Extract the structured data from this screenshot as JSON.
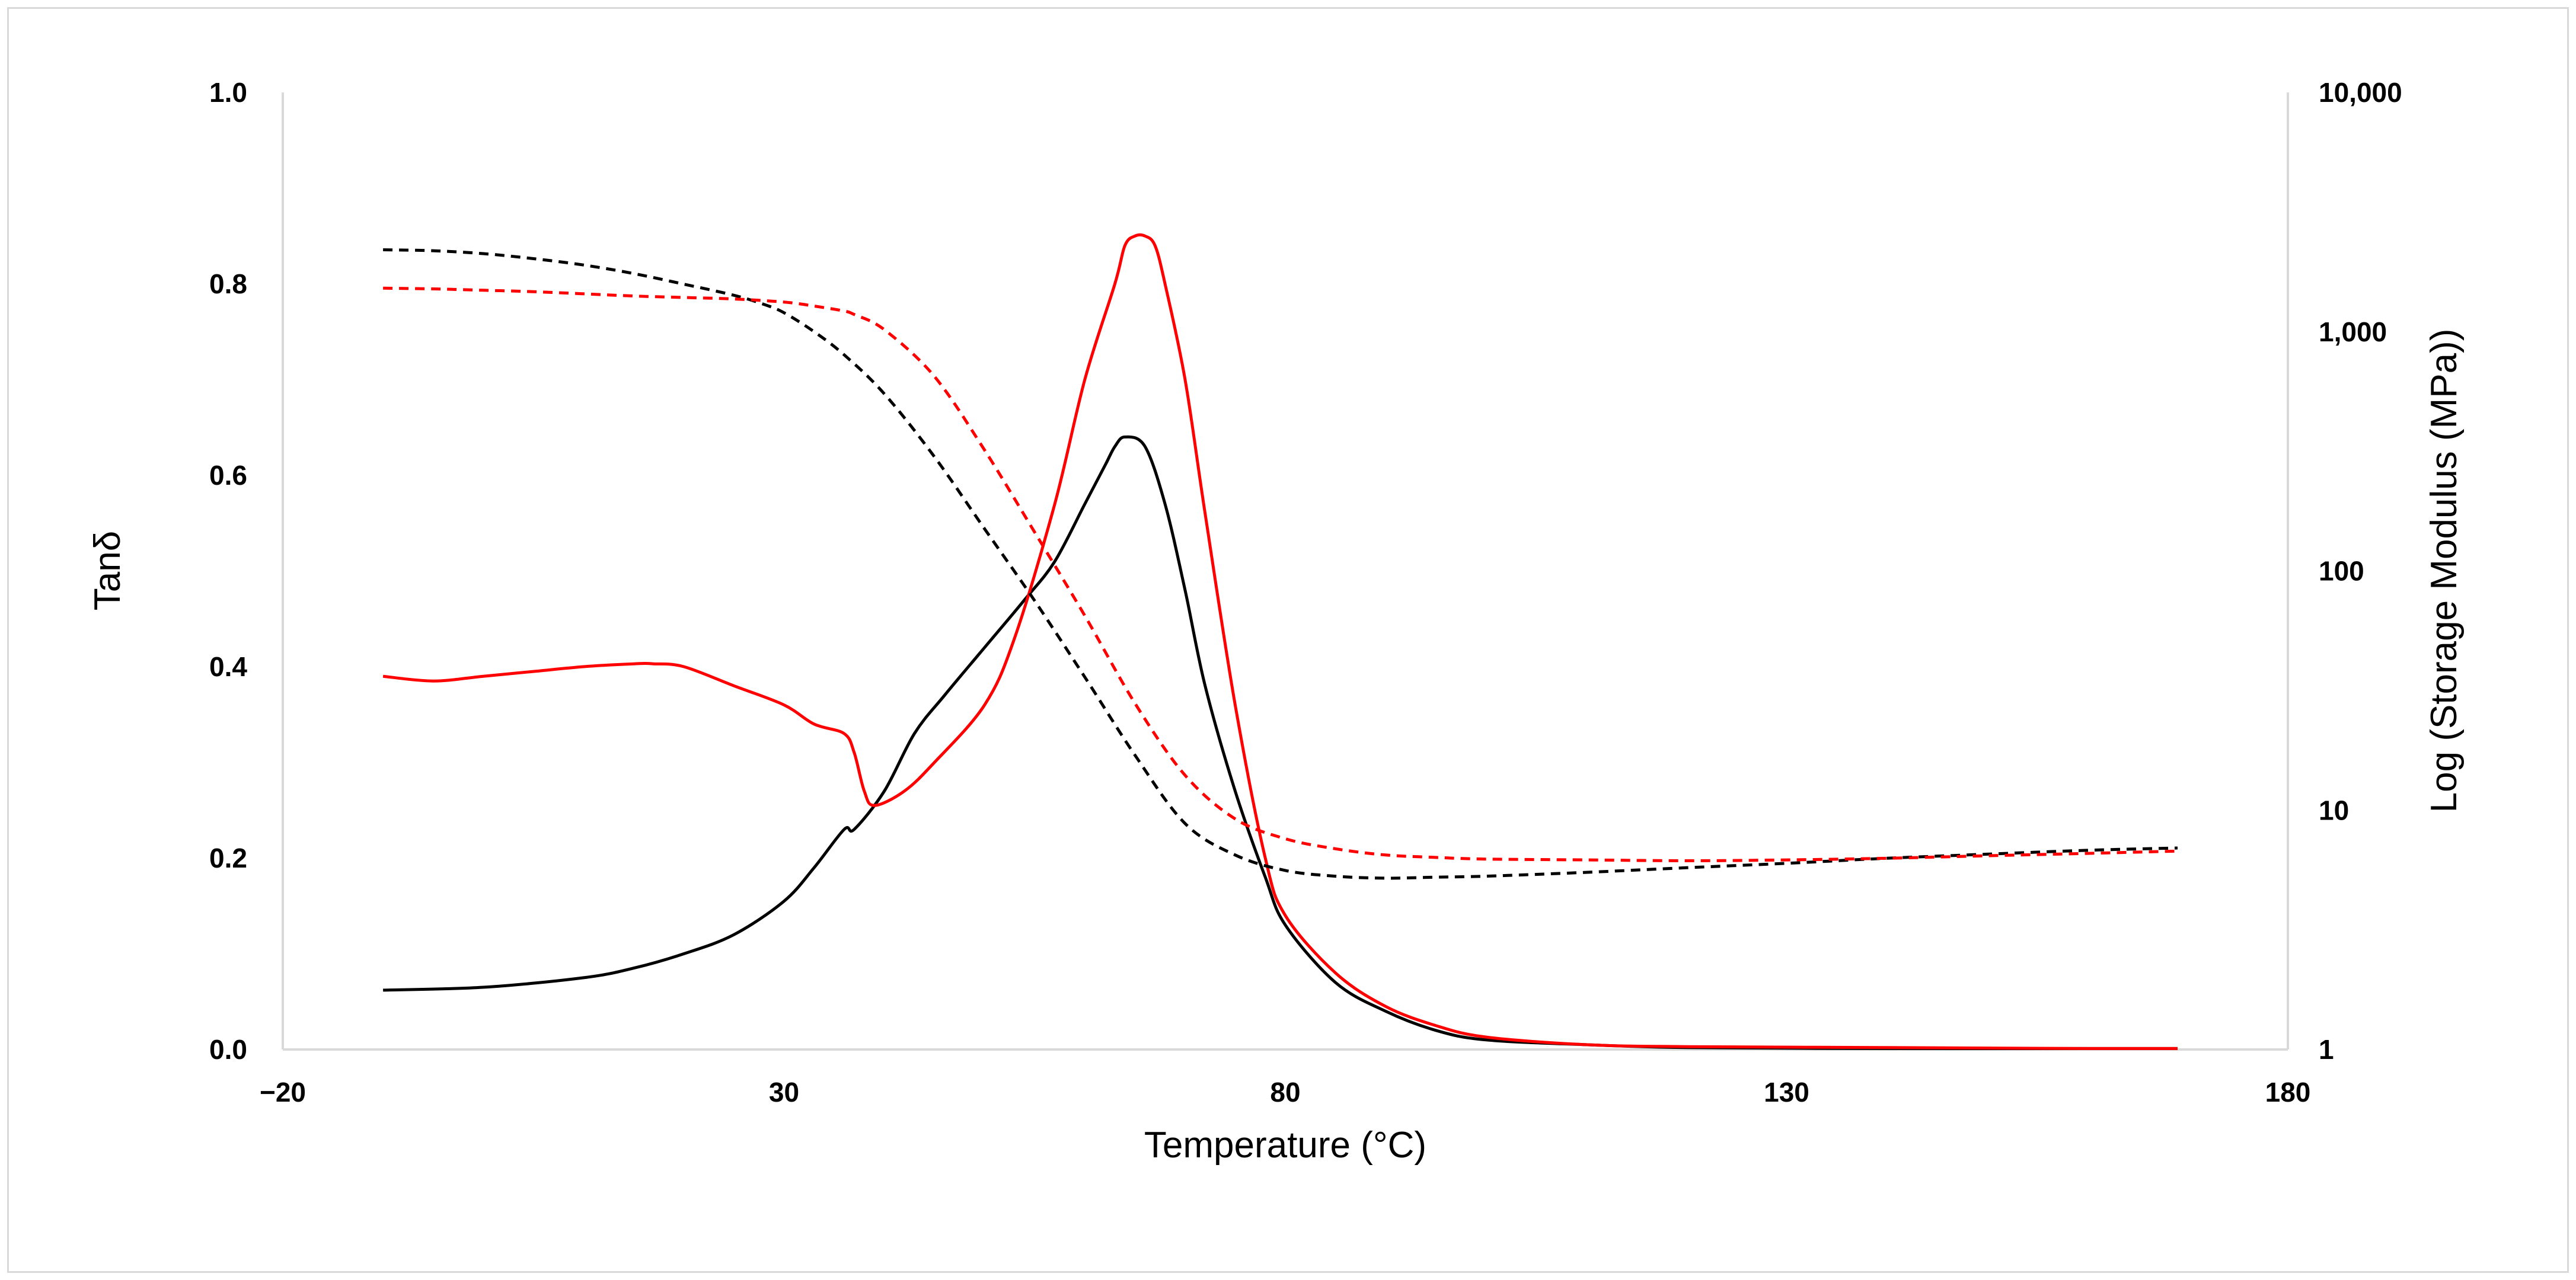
{
  "chart_data": {
    "type": "line",
    "title": "",
    "xlabel": "Temperature (°C)",
    "ylabel_left": "Tanδ",
    "ylabel_right": "Log (Storage Modulus (MPa))",
    "xlim": [
      -20,
      180
    ],
    "ylim_left": [
      0,
      1
    ],
    "ylim_right_log": [
      1,
      10000
    ],
    "grid": false,
    "legend": "none",
    "x_ticks": [
      {
        "value": -20,
        "label": "−20"
      },
      {
        "value": 30,
        "label": "30"
      },
      {
        "value": 80,
        "label": "80"
      },
      {
        "value": 130,
        "label": "130"
      },
      {
        "value": 180,
        "label": "180"
      }
    ],
    "y_left_ticks": [
      {
        "value": 0,
        "label": "0.0"
      },
      {
        "value": 0.2,
        "label": "0.2"
      },
      {
        "value": 0.4,
        "label": "0.4"
      },
      {
        "value": 0.6,
        "label": "0.6"
      },
      {
        "value": 0.8,
        "label": "0.8"
      },
      {
        "value": 1.0,
        "label": "1.0"
      }
    ],
    "y_right_ticks": [
      {
        "value": 1,
        "label": "1"
      },
      {
        "value": 10,
        "label": "10"
      },
      {
        "value": 100,
        "label": "100"
      },
      {
        "value": 1000,
        "label": "1,000"
      },
      {
        "value": 10000,
        "label": "10,000"
      }
    ],
    "series": [
      {
        "name": "black-tan-delta",
        "axis": "left",
        "color": "#000000",
        "dash": "solid",
        "x": [
          -10,
          0,
          10,
          15,
          20,
          25,
          30,
          33,
          36,
          37,
          40,
          43,
          46,
          50,
          54,
          57,
          60,
          62,
          63,
          64,
          66,
          68,
          70,
          72,
          75,
          78,
          80,
          85,
          90,
          95,
          100,
          110,
          120,
          140,
          160,
          169
        ],
        "y": [
          0.062,
          0.065,
          0.075,
          0.085,
          0.1,
          0.12,
          0.155,
          0.19,
          0.23,
          0.23,
          0.27,
          0.33,
          0.37,
          0.42,
          0.47,
          0.51,
          0.57,
          0.61,
          0.63,
          0.64,
          0.63,
          0.57,
          0.48,
          0.38,
          0.27,
          0.18,
          0.13,
          0.07,
          0.04,
          0.02,
          0.01,
          0.005,
          0.002,
          0.001,
          0.001,
          0.001
        ]
      },
      {
        "name": "red-tan-delta",
        "axis": "left",
        "color": "#ff0000",
        "dash": "solid",
        "x": [
          -10,
          -5,
          0,
          5,
          10,
          15,
          17,
          20,
          25,
          30,
          33,
          36,
          37,
          38,
          39,
          42,
          45,
          50,
          53,
          57,
          60,
          63,
          64,
          65,
          66,
          67,
          68,
          70,
          72,
          75,
          78,
          80,
          85,
          90,
          95,
          100,
          110,
          120,
          140,
          160,
          169
        ],
        "y": [
          0.39,
          0.385,
          0.39,
          0.395,
          0.4,
          0.403,
          0.403,
          0.4,
          0.38,
          0.36,
          0.34,
          0.33,
          0.31,
          0.27,
          0.255,
          0.27,
          0.3,
          0.36,
          0.43,
          0.57,
          0.7,
          0.8,
          0.84,
          0.85,
          0.85,
          0.84,
          0.8,
          0.7,
          0.56,
          0.36,
          0.2,
          0.14,
          0.08,
          0.045,
          0.025,
          0.013,
          0.005,
          0.003,
          0.002,
          0.001,
          0.001
        ]
      },
      {
        "name": "black-storage-modulus",
        "axis": "right",
        "color": "#000000",
        "dash": "dashed",
        "x": [
          -10,
          -5,
          0,
          5,
          10,
          15,
          20,
          25,
          28,
          30,
          33,
          36,
          40,
          45,
          50,
          55,
          60,
          65,
          70,
          75,
          80,
          85,
          90,
          95,
          100,
          110,
          120,
          130,
          140,
          150,
          160,
          169
        ],
        "y": [
          2200,
          2180,
          2120,
          2020,
          1900,
          1750,
          1580,
          1420,
          1300,
          1200,
          1000,
          800,
          550,
          300,
          150,
          75,
          36,
          17,
          8.8,
          6.5,
          5.6,
          5.3,
          5.2,
          5.25,
          5.3,
          5.5,
          5.75,
          6.0,
          6.3,
          6.55,
          6.8,
          6.95
        ]
      },
      {
        "name": "red-storage-modulus",
        "axis": "right",
        "color": "#ff0000",
        "dash": "dashed",
        "x": [
          -10,
          -5,
          0,
          5,
          10,
          15,
          20,
          25,
          30,
          33,
          36,
          37,
          40,
          45,
          50,
          55,
          60,
          65,
          70,
          75,
          80,
          85,
          90,
          95,
          100,
          110,
          120,
          130,
          140,
          150,
          160,
          169
        ],
        "y": [
          1520,
          1510,
          1490,
          1470,
          1440,
          1410,
          1390,
          1370,
          1330,
          1280,
          1220,
          1180,
          1020,
          650,
          320,
          145,
          65,
          28,
          14,
          9.2,
          7.6,
          6.9,
          6.5,
          6.35,
          6.25,
          6.2,
          6.15,
          6.2,
          6.3,
          6.45,
          6.6,
          6.75
        ]
      }
    ]
  }
}
